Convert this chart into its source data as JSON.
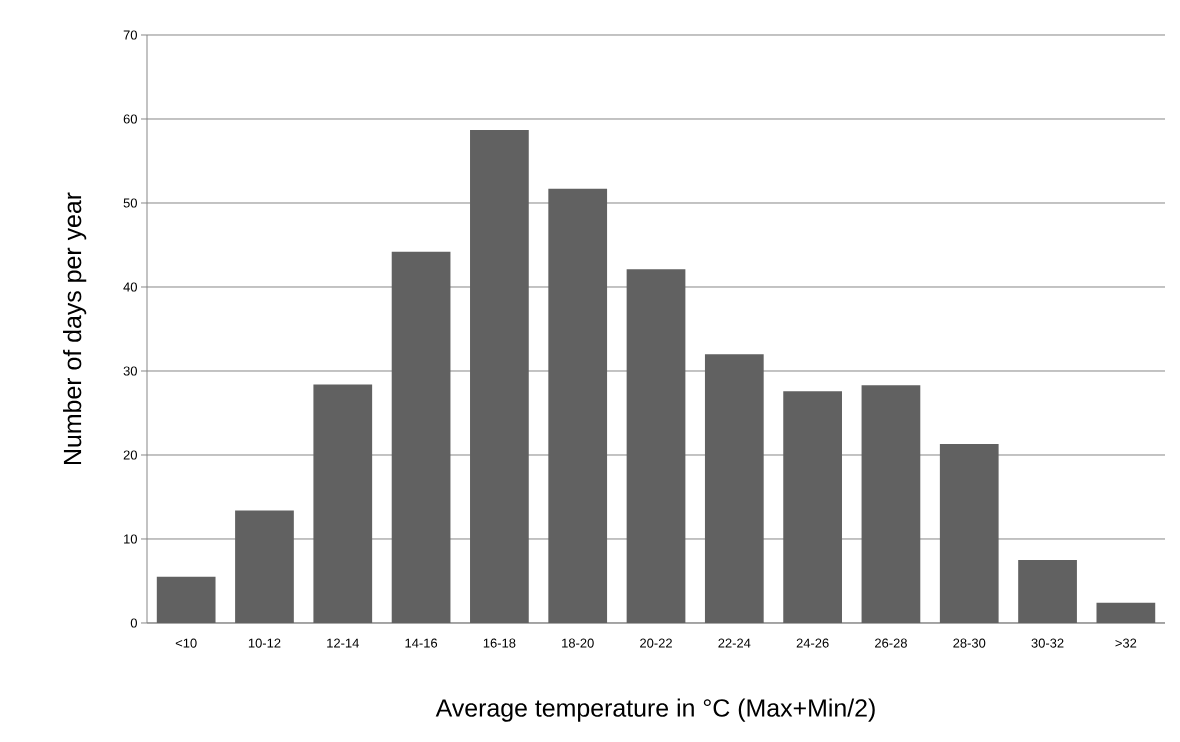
{
  "chart_data": {
    "type": "bar",
    "xlabel": "Average temperature in °C (Max+Min/2)",
    "ylabel": "Number of days per year",
    "categories": [
      "<10",
      "10-12",
      "12-14",
      "14-16",
      "16-18",
      "18-20",
      "20-22",
      "22-24",
      "24-26",
      "26-28",
      "28-30",
      "30-32",
      ">32"
    ],
    "values": [
      5.5,
      13.4,
      28.4,
      44.2,
      58.7,
      51.7,
      42.1,
      32.0,
      27.6,
      28.3,
      21.3,
      7.5,
      2.4
    ],
    "color": "#616161",
    "ylim": [
      0,
      70
    ],
    "yticks": [
      0,
      10,
      20,
      30,
      40,
      50,
      60,
      70
    ],
    "grid": "y"
  }
}
